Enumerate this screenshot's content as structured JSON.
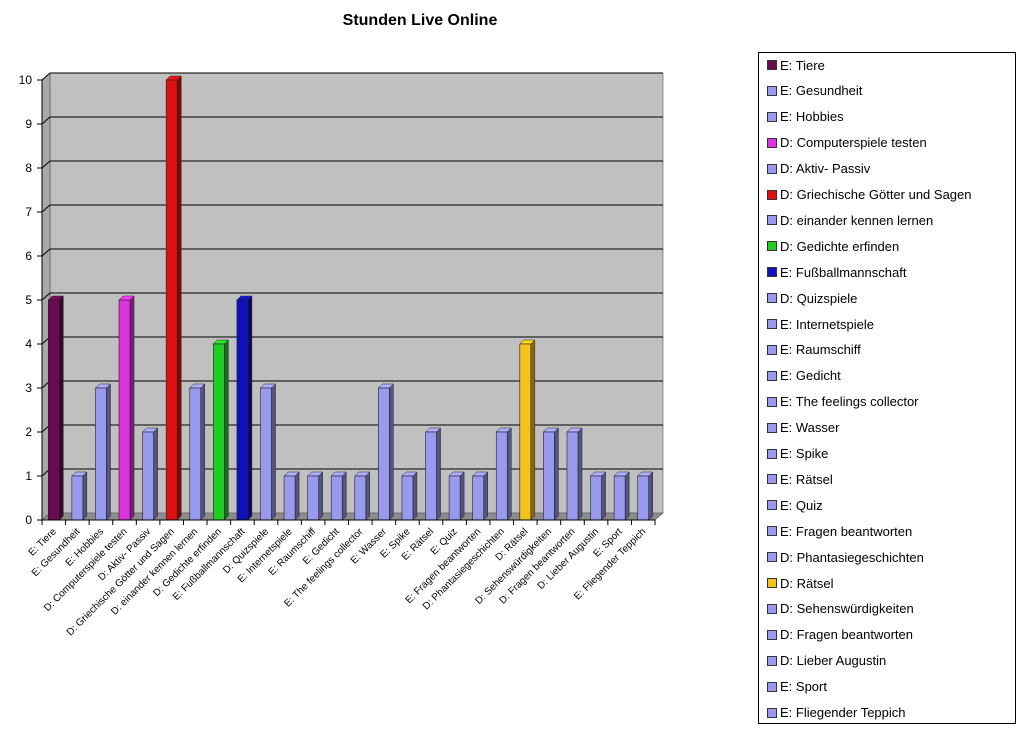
{
  "chart_data": {
    "type": "bar",
    "title": "Stunden Live Online",
    "xlabel": "",
    "ylabel": "",
    "ylim": [
      0,
      10
    ],
    "yticks": [
      0,
      1,
      2,
      3,
      4,
      5,
      6,
      7,
      8,
      9,
      10
    ],
    "grid": true,
    "legend_position": "right",
    "plot_background": "#c0c0c0",
    "categories": [
      "E: Tiere",
      "E: Gesundheit",
      "E: Hobbies",
      "D: Computerspiele testen",
      "D: Aktiv- Passiv",
      "D: Griechische Götter und Sagen",
      "D: einander kennen lernen",
      "D: Gedichte erfinden",
      "E: Fußballmannschaft",
      "D: Quizspiele",
      "E: Internetspiele",
      "E: Raumschiff",
      "E: Gedicht",
      "E: The feelings collector",
      "E: Wasser",
      "E: Spike",
      "E: Rätsel",
      "E: Quiz",
      "E: Fragen beantworten",
      "D: Phantasiegeschichten",
      "D: Rätsel",
      "D: Sehenswürdigkeiten",
      "D: Fragen beantworten",
      "D: Lieber Augustin",
      "E: Sport",
      "E: Fliegender Teppich"
    ],
    "values": [
      5,
      1,
      3,
      5,
      2,
      10,
      3,
      4,
      5,
      3,
      1,
      1,
      1,
      1,
      3,
      1,
      2,
      1,
      1,
      2,
      4,
      2,
      2,
      1,
      1,
      1
    ],
    "colors": [
      "#6a0a52",
      "#9999ee",
      "#9999ee",
      "#dd33dd",
      "#9999ee",
      "#dd1111",
      "#9999ee",
      "#22cc22",
      "#1111bb",
      "#9999ee",
      "#9999ee",
      "#9999ee",
      "#9999ee",
      "#9999ee",
      "#9999ee",
      "#9999ee",
      "#9999ee",
      "#9999ee",
      "#9999ee",
      "#9999ee",
      "#f5c21b",
      "#9999ee",
      "#9999ee",
      "#9999ee",
      "#9999ee",
      "#9999ee"
    ],
    "legend": [
      "E: Tiere",
      "E: Gesundheit",
      "E: Hobbies",
      "D: Computerspiele testen",
      "D: Aktiv- Passiv",
      "D: Griechische Götter und Sagen",
      "D: einander kennen lernen",
      "D: Gedichte erfinden",
      "E: Fußballmannschaft",
      "D: Quizspiele",
      "E: Internetspiele",
      "E: Raumschiff",
      "E: Gedicht",
      "E: The feelings collector",
      "E: Wasser",
      "E: Spike",
      "E: Rätsel",
      "E: Quiz",
      "E: Fragen beantworten",
      "D: Phantasiegeschichten",
      "D: Rätsel",
      "D: Sehenswürdigkeiten",
      "D: Fragen beantworten",
      "D: Lieber Augustin",
      "E: Sport",
      "E: Fliegender Teppich"
    ]
  }
}
